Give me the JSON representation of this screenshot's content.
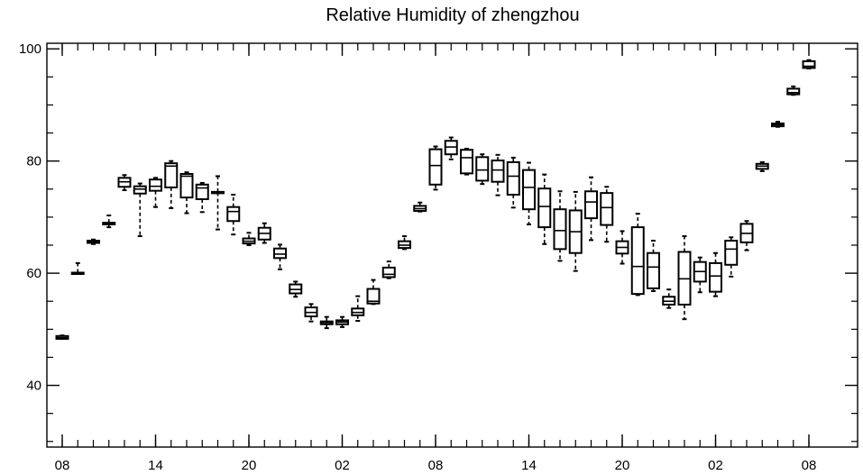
{
  "chart_data": {
    "type": "box",
    "title": "Relative Humidity of zhengzhou",
    "xlabel": "",
    "ylabel": "",
    "ylim": [
      29,
      101
    ],
    "y_ticks": [
      40,
      60,
      80,
      100
    ],
    "x_tick_labels": [
      "08",
      "14",
      "20",
      "02",
      "08",
      "14",
      "20",
      "02",
      "08"
    ],
    "x_tick_steps": [
      0,
      6,
      12,
      18,
      24,
      30,
      36,
      42,
      48
    ],
    "grid": false,
    "boxes": [
      {
        "step": 0,
        "whisker_low": 48.3,
        "q1": 48.3,
        "median": 48.5,
        "q3": 48.8,
        "whisker_high": 48.9
      },
      {
        "step": 1,
        "whisker_low": 60.0,
        "q1": 60.0,
        "median": 60.0,
        "q3": 60.1,
        "whisker_high": 61.8
      },
      {
        "step": 2,
        "whisker_low": 65.2,
        "q1": 65.4,
        "median": 65.6,
        "q3": 65.8,
        "whisker_high": 66.0
      },
      {
        "step": 3,
        "whisker_low": 68.2,
        "q1": 68.7,
        "median": 68.8,
        "q3": 69.0,
        "whisker_high": 70.3
      },
      {
        "step": 4,
        "whisker_low": 74.8,
        "q1": 75.4,
        "median": 76.3,
        "q3": 77.0,
        "whisker_high": 77.5
      },
      {
        "step": 5,
        "whisker_low": 66.6,
        "q1": 74.2,
        "median": 75.0,
        "q3": 75.5,
        "whisker_high": 76.0
      },
      {
        "step": 6,
        "whisker_low": 71.8,
        "q1": 74.7,
        "median": 75.5,
        "q3": 76.7,
        "whisker_high": 77.0
      },
      {
        "step": 7,
        "whisker_low": 71.6,
        "q1": 75.3,
        "median": 79.1,
        "q3": 79.6,
        "whisker_high": 80.0
      },
      {
        "step": 8,
        "whisker_low": 70.7,
        "q1": 73.5,
        "median": 77.3,
        "q3": 77.7,
        "whisker_high": 78.0
      },
      {
        "step": 9,
        "whisker_low": 70.9,
        "q1": 73.2,
        "median": 75.2,
        "q3": 75.8,
        "whisker_high": 76.1
      },
      {
        "step": 10,
        "whisker_low": 67.8,
        "q1": 74.4,
        "median": 74.5,
        "q3": 74.5,
        "whisker_high": 77.3
      },
      {
        "step": 11,
        "whisker_low": 66.9,
        "q1": 69.3,
        "median": 71.0,
        "q3": 71.8,
        "whisker_high": 74.0
      },
      {
        "step": 12,
        "whisker_low": 65.0,
        "q1": 65.3,
        "median": 65.7,
        "q3": 66.2,
        "whisker_high": 67.2
      },
      {
        "step": 13,
        "whisker_low": 65.4,
        "q1": 66.0,
        "median": 67.1,
        "q3": 68.1,
        "whisker_high": 68.9
      },
      {
        "step": 14,
        "whisker_low": 60.7,
        "q1": 62.7,
        "median": 63.4,
        "q3": 64.4,
        "whisker_high": 65.1
      },
      {
        "step": 15,
        "whisker_low": 55.8,
        "q1": 56.4,
        "median": 57.1,
        "q3": 58.0,
        "whisker_high": 58.5
      },
      {
        "step": 16,
        "whisker_low": 51.4,
        "q1": 52.3,
        "median": 53.0,
        "q3": 53.9,
        "whisker_high": 54.5
      },
      {
        "step": 17,
        "whisker_low": 50.2,
        "q1": 50.9,
        "median": 51.2,
        "q3": 51.4,
        "whisker_high": 52.2
      },
      {
        "step": 18,
        "whisker_low": 50.4,
        "q1": 50.9,
        "median": 51.3,
        "q3": 51.6,
        "whisker_high": 52.2
      },
      {
        "step": 19,
        "whisker_low": 51.5,
        "q1": 52.5,
        "median": 53.0,
        "q3": 53.7,
        "whisker_high": 55.9
      },
      {
        "step": 20,
        "whisker_low": 54.5,
        "q1": 54.6,
        "median": 55.0,
        "q3": 57.2,
        "whisker_high": 58.8
      },
      {
        "step": 21,
        "whisker_low": 59.1,
        "q1": 59.3,
        "median": 59.8,
        "q3": 61.0,
        "whisker_high": 62.1
      },
      {
        "step": 22,
        "whisker_low": 64.3,
        "q1": 64.5,
        "median": 65.0,
        "q3": 65.7,
        "whisker_high": 66.6
      },
      {
        "step": 23,
        "whisker_low": 71.0,
        "q1": 71.1,
        "median": 71.5,
        "q3": 72.0,
        "whisker_high": 72.6
      },
      {
        "step": 24,
        "whisker_low": 74.9,
        "q1": 75.8,
        "median": 79.2,
        "q3": 82.1,
        "whisker_high": 82.6
      },
      {
        "step": 25,
        "whisker_low": 80.3,
        "q1": 81.2,
        "median": 82.5,
        "q3": 83.6,
        "whisker_high": 84.2
      },
      {
        "step": 26,
        "whisker_low": 77.6,
        "q1": 77.8,
        "median": 80.6,
        "q3": 82.0,
        "whisker_high": 82.2
      },
      {
        "step": 27,
        "whisker_low": 75.9,
        "q1": 76.5,
        "median": 78.4,
        "q3": 80.7,
        "whisker_high": 81.2
      },
      {
        "step": 28,
        "whisker_low": 73.9,
        "q1": 76.3,
        "median": 78.4,
        "q3": 80.1,
        "whisker_high": 81.1
      },
      {
        "step": 29,
        "whisker_low": 71.7,
        "q1": 74.0,
        "median": 77.3,
        "q3": 79.8,
        "whisker_high": 80.6
      },
      {
        "step": 30,
        "whisker_low": 68.7,
        "q1": 71.4,
        "median": 75.3,
        "q3": 78.4,
        "whisker_high": 79.7
      },
      {
        "step": 31,
        "whisker_low": 65.2,
        "q1": 68.2,
        "median": 71.9,
        "q3": 75.1,
        "whisker_high": 77.6
      },
      {
        "step": 32,
        "whisker_low": 62.2,
        "q1": 64.3,
        "median": 67.6,
        "q3": 71.4,
        "whisker_high": 74.6
      },
      {
        "step": 33,
        "whisker_low": 60.4,
        "q1": 63.6,
        "median": 67.4,
        "q3": 71.2,
        "whisker_high": 74.5
      },
      {
        "step": 34,
        "whisker_low": 65.9,
        "q1": 69.8,
        "median": 72.7,
        "q3": 74.6,
        "whisker_high": 77.1
      },
      {
        "step": 35,
        "whisker_low": 65.6,
        "q1": 68.6,
        "median": 71.7,
        "q3": 74.3,
        "whisker_high": 75.4
      },
      {
        "step": 36,
        "whisker_low": 61.7,
        "q1": 63.5,
        "median": 64.6,
        "q3": 65.7,
        "whisker_high": 67.5
      },
      {
        "step": 37,
        "whisker_low": 56.1,
        "q1": 56.3,
        "median": 61.2,
        "q3": 68.2,
        "whisker_high": 70.6
      },
      {
        "step": 38,
        "whisker_low": 56.8,
        "q1": 57.3,
        "median": 61.1,
        "q3": 63.6,
        "whisker_high": 65.8
      },
      {
        "step": 39,
        "whisker_low": 53.8,
        "q1": 54.4,
        "median": 55.0,
        "q3": 55.8,
        "whisker_high": 57.1
      },
      {
        "step": 40,
        "whisker_low": 51.8,
        "q1": 54.4,
        "median": 59.0,
        "q3": 63.8,
        "whisker_high": 66.6
      },
      {
        "step": 41,
        "whisker_low": 56.6,
        "q1": 58.5,
        "median": 60.3,
        "q3": 62.0,
        "whisker_high": 62.8
      },
      {
        "step": 42,
        "whisker_low": 55.9,
        "q1": 56.7,
        "median": 59.5,
        "q3": 61.8,
        "whisker_high": 63.6
      },
      {
        "step": 43,
        "whisker_low": 59.4,
        "q1": 61.5,
        "median": 64.3,
        "q3": 65.8,
        "whisker_high": 66.4
      },
      {
        "step": 44,
        "whisker_low": 64.1,
        "q1": 65.5,
        "median": 67.1,
        "q3": 68.8,
        "whisker_high": 69.3
      },
      {
        "step": 45,
        "whisker_low": 78.2,
        "q1": 78.6,
        "median": 79.1,
        "q3": 79.5,
        "whisker_high": 79.8
      },
      {
        "step": 46,
        "whisker_low": 86.1,
        "q1": 86.2,
        "median": 86.5,
        "q3": 86.7,
        "whisker_high": 87.0
      },
      {
        "step": 47,
        "whisker_low": 91.8,
        "q1": 91.9,
        "median": 92.2,
        "q3": 92.9,
        "whisker_high": 93.3
      },
      {
        "step": 48,
        "whisker_low": 96.5,
        "q1": 96.6,
        "median": 96.9,
        "q3": 97.8,
        "whisker_high": 98.0
      }
    ]
  }
}
